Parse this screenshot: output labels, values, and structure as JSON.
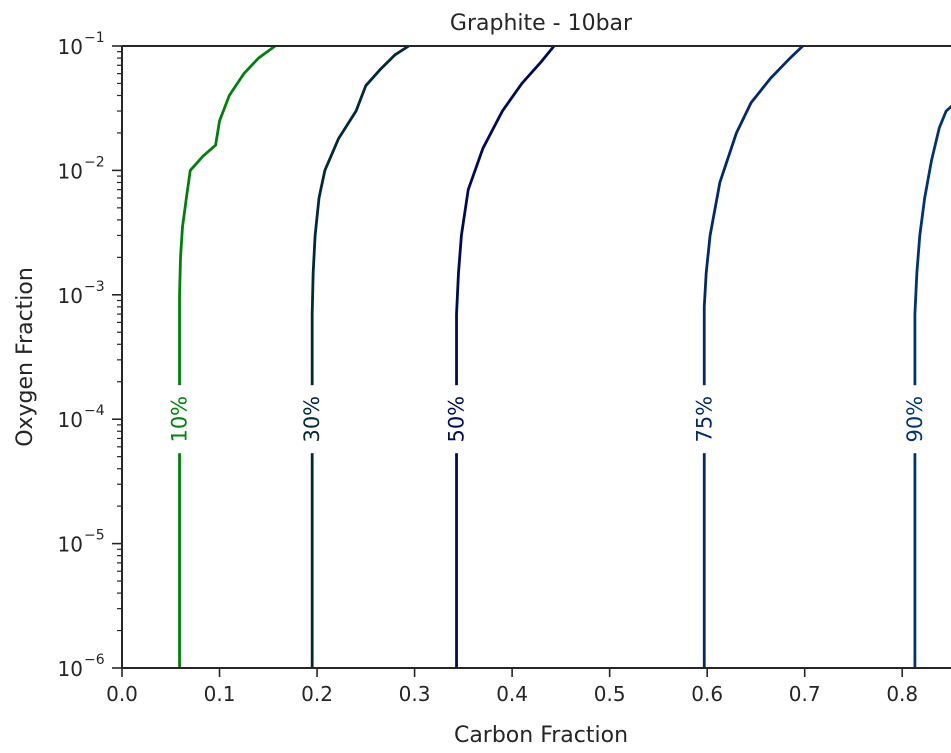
{
  "chart_data": {
    "type": "line",
    "title": "Graphite - 10bar",
    "xlabel": "Carbon Fraction",
    "ylabel": "Oxygen Fraction",
    "xlim": [
      0.0,
      0.85
    ],
    "ylim": [
      1e-06,
      0.1
    ],
    "yscale": "log",
    "grid": false,
    "x_ticks": [
      "0.0",
      "0.1",
      "0.2",
      "0.3",
      "0.4",
      "0.5",
      "0.6",
      "0.7",
      "0.8"
    ],
    "x_tick_values": [
      0.0,
      0.1,
      0.2,
      0.3,
      0.4,
      0.5,
      0.6,
      0.7,
      0.8
    ],
    "y_ticks": [
      {
        "base": "10",
        "exp": "−6",
        "value": 1e-06
      },
      {
        "base": "10",
        "exp": "−5",
        "value": 1e-05
      },
      {
        "base": "10",
        "exp": "−4",
        "value": 0.0001
      },
      {
        "base": "10",
        "exp": "−3",
        "value": 0.001
      },
      {
        "base": "10",
        "exp": "−2",
        "value": 0.01
      },
      {
        "base": "10",
        "exp": "−1",
        "value": 0.1
      }
    ],
    "series": [
      {
        "name": "10%",
        "color": "#00800a",
        "label_y": 0.0001,
        "points": [
          [
            0.059,
            1e-06
          ],
          [
            0.059,
            0.0001
          ],
          [
            0.059,
            0.001
          ],
          [
            0.06,
            0.002
          ],
          [
            0.062,
            0.0035
          ],
          [
            0.066,
            0.006
          ],
          [
            0.07,
            0.01
          ],
          [
            0.083,
            0.013
          ],
          [
            0.096,
            0.016
          ],
          [
            0.1,
            0.025
          ],
          [
            0.11,
            0.04
          ],
          [
            0.125,
            0.06
          ],
          [
            0.14,
            0.08
          ],
          [
            0.157,
            0.1
          ]
        ]
      },
      {
        "name": "30%",
        "color": "#002a3a",
        "label_y": 0.0001,
        "points": [
          [
            0.195,
            1e-06
          ],
          [
            0.195,
            0.0001
          ],
          [
            0.195,
            0.0007
          ],
          [
            0.196,
            0.0015
          ],
          [
            0.198,
            0.003
          ],
          [
            0.202,
            0.006
          ],
          [
            0.208,
            0.01
          ],
          [
            0.222,
            0.018
          ],
          [
            0.24,
            0.03
          ],
          [
            0.25,
            0.048
          ],
          [
            0.265,
            0.065
          ],
          [
            0.28,
            0.085
          ],
          [
            0.294,
            0.1
          ]
        ]
      },
      {
        "name": "50%",
        "color": "#000b55",
        "label_y": 0.0001,
        "points": [
          [
            0.343,
            1e-06
          ],
          [
            0.343,
            0.0001
          ],
          [
            0.343,
            0.0007
          ],
          [
            0.345,
            0.0015
          ],
          [
            0.348,
            0.003
          ],
          [
            0.355,
            0.007
          ],
          [
            0.37,
            0.015
          ],
          [
            0.39,
            0.03
          ],
          [
            0.41,
            0.05
          ],
          [
            0.43,
            0.075
          ],
          [
            0.443,
            0.1
          ]
        ]
      },
      {
        "name": "75%",
        "color": "#002a6a",
        "label_y": 0.0001,
        "points": [
          [
            0.597,
            1e-06
          ],
          [
            0.597,
            0.0001
          ],
          [
            0.597,
            0.0008
          ],
          [
            0.599,
            0.0015
          ],
          [
            0.603,
            0.003
          ],
          [
            0.613,
            0.008
          ],
          [
            0.63,
            0.02
          ],
          [
            0.645,
            0.035
          ],
          [
            0.665,
            0.055
          ],
          [
            0.685,
            0.08
          ],
          [
            0.698,
            0.1
          ]
        ]
      },
      {
        "name": "90%",
        "color": "#003472",
        "label_y": 0.0001,
        "points": [
          [
            0.813,
            1e-06
          ],
          [
            0.813,
            0.0001
          ],
          [
            0.813,
            0.0007
          ],
          [
            0.815,
            0.0015
          ],
          [
            0.818,
            0.003
          ],
          [
            0.823,
            0.006
          ],
          [
            0.83,
            0.012
          ],
          [
            0.838,
            0.022
          ],
          [
            0.845,
            0.03
          ],
          [
            0.851,
            0.033
          ]
        ]
      }
    ]
  }
}
